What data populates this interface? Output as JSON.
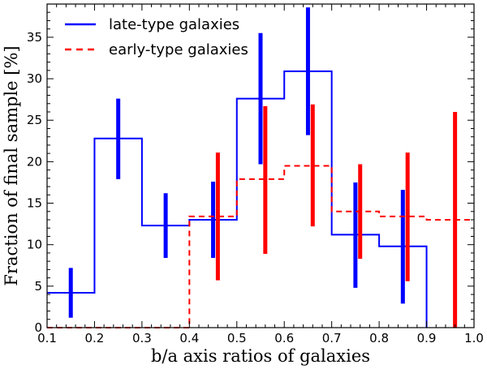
{
  "chart_data": {
    "type": "line",
    "title": "",
    "xlabel": "b/a axis ratios of galaxies",
    "ylabel": "Fraction of final sample [%]",
    "xlim": [
      0.1,
      1.0
    ],
    "ylim": [
      0,
      39
    ],
    "xticks": [
      0.1,
      0.2,
      0.3,
      0.4,
      0.5,
      0.6,
      0.7,
      0.8,
      0.9,
      1.0
    ],
    "xtick_labels": [
      "0.1",
      "0.2",
      "0.3",
      "0.4",
      "0.5",
      "0.6",
      "0.7",
      "0.8",
      "0.9",
      "1.0"
    ],
    "yticks": [
      0,
      5,
      10,
      15,
      20,
      25,
      30,
      35
    ],
    "ytick_labels": [
      "0",
      "5",
      "10",
      "15",
      "20",
      "25",
      "30",
      "35"
    ],
    "legend_position": "top-left",
    "series": [
      {
        "name": "late-type galaxies",
        "style": "step-solid",
        "color": "#0000ff",
        "bin_edges": [
          0.1,
          0.2,
          0.3,
          0.4,
          0.5,
          0.6,
          0.7,
          0.8,
          0.9
        ],
        "values": [
          4.2,
          22.8,
          12.3,
          13.0,
          27.6,
          30.9,
          11.2,
          9.8
        ],
        "errorbars": [
          {
            "x": 0.15,
            "low": 1.2,
            "high": 7.2
          },
          {
            "x": 0.25,
            "low": 17.9,
            "high": 27.6
          },
          {
            "x": 0.35,
            "low": 8.4,
            "high": 16.2
          },
          {
            "x": 0.45,
            "low": 8.4,
            "high": 17.6
          },
          {
            "x": 0.55,
            "low": 19.7,
            "high": 35.5
          },
          {
            "x": 0.65,
            "low": 23.2,
            "high": 38.6
          },
          {
            "x": 0.75,
            "low": 4.8,
            "high": 17.5
          },
          {
            "x": 0.85,
            "low": 2.9,
            "high": 16.6
          }
        ]
      },
      {
        "name": "early-type galaxies",
        "style": "step-dashed",
        "color": "#ff0000",
        "bin_edges": [
          0.1,
          0.2,
          0.3,
          0.4,
          0.5,
          0.6,
          0.7,
          0.8,
          0.9,
          1.0
        ],
        "values": [
          0.0,
          0.0,
          0.0,
          13.4,
          17.9,
          19.5,
          14.0,
          13.4,
          13.0
        ],
        "errorbars": [
          {
            "x": 0.46,
            "low": 5.7,
            "high": 21.1
          },
          {
            "x": 0.56,
            "low": 8.9,
            "high": 26.7
          },
          {
            "x": 0.66,
            "low": 12.2,
            "high": 26.9
          },
          {
            "x": 0.76,
            "low": 8.3,
            "high": 19.7
          },
          {
            "x": 0.86,
            "low": 5.6,
            "high": 21.1
          },
          {
            "x": 0.96,
            "low": 0.0,
            "high": 26.0
          }
        ]
      }
    ]
  }
}
